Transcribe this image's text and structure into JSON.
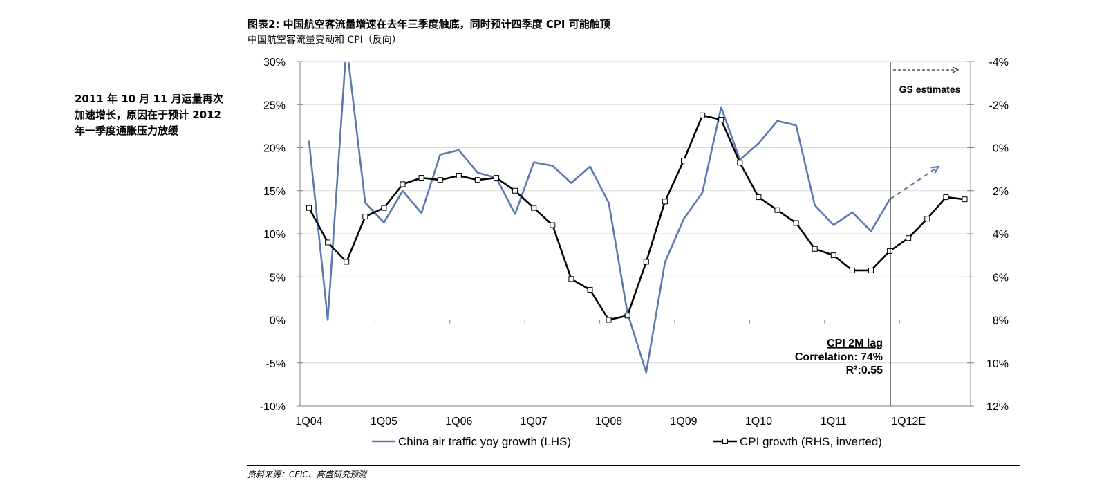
{
  "header": {
    "title": "图表2: 中国航空客流量增速在去年三季度触底，同时预计四季度 CPI 可能触顶",
    "subtitle": "中国航空客流量变动和 CPI（反向）"
  },
  "side_note": "2011 年 10 月 11 月运量再次加速增长，原因在于预计 2012 年一季度通胀压力放缓",
  "footer": {
    "source": "资料来源：CEIC、高盛研究预测"
  },
  "colors": {
    "traffic": "#5B78B0",
    "cpi": "#000000",
    "grid": "#D9D9D9",
    "axis": "#808080"
  },
  "chart_data": {
    "type": "line",
    "x_labels": [
      "1Q04",
      "1Q05",
      "1Q06",
      "1Q07",
      "1Q08",
      "1Q09",
      "1Q10",
      "1Q11",
      "1Q12E"
    ],
    "left_axis": {
      "min": -10,
      "max": 30,
      "ticks": [
        "-10%",
        "-5%",
        "0%",
        "5%",
        "10%",
        "15%",
        "20%",
        "25%",
        "30%"
      ]
    },
    "right_axis": {
      "min": -4,
      "max": 12,
      "inverted": true,
      "ticks": [
        "-4%",
        "-2%",
        "0%",
        "2%",
        "4%",
        "6%",
        "8%",
        "10%",
        "12%"
      ]
    },
    "series": [
      {
        "name": "China air traffic yoy growth (LHS)",
        "axis": "left",
        "values": [
          20.8,
          0.0,
          32.0,
          13.6,
          11.3,
          15.0,
          12.4,
          19.2,
          19.7,
          17.1,
          16.5,
          12.3,
          18.3,
          17.9,
          15.9,
          17.8,
          13.6,
          0.8,
          -6.1,
          6.7,
          11.7,
          14.8,
          24.7,
          18.6,
          20.5,
          23.1,
          22.6,
          13.3,
          11.0,
          12.5,
          10.3,
          14.0
        ]
      },
      {
        "name": "CPI growth (RHS, inverted)",
        "axis": "right",
        "values": [
          2.8,
          4.4,
          5.3,
          3.2,
          2.8,
          1.7,
          1.4,
          1.5,
          1.3,
          1.5,
          1.4,
          2.0,
          2.8,
          3.6,
          6.1,
          6.6,
          8.0,
          7.8,
          5.3,
          2.5,
          0.6,
          -1.5,
          -1.3,
          0.7,
          2.3,
          2.9,
          3.5,
          4.7,
          5.0,
          5.7,
          5.7,
          4.8,
          4.2,
          3.3,
          2.3,
          2.4
        ]
      }
    ],
    "projection": {
      "from": 14.0,
      "to": 17.8,
      "axis": "left"
    },
    "annotations": {
      "estimates_label": "GS estimates",
      "lag_title": "CPI 2M lag",
      "correlation": "Correlation: 74%",
      "r_squared": "R²:0.55"
    },
    "legend_position": "bottom",
    "grid": true
  }
}
